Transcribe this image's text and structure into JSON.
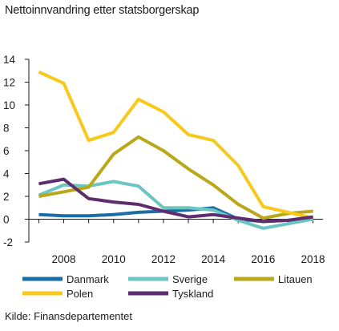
{
  "chart_data": {
    "type": "line",
    "title": "Nettoinnvandring etter statsborgerskap",
    "source": "Kilde: Finansdepartementet",
    "x": [
      2007,
      2008,
      2009,
      2010,
      2011,
      2012,
      2013,
      2014,
      2015,
      2016,
      2017,
      2018
    ],
    "x_tick_labels": [
      "2008",
      "2010",
      "2012",
      "2014",
      "2016",
      "2018"
    ],
    "y_tick_labels": [
      "-2",
      "0",
      "2",
      "4",
      "6",
      "8",
      "10",
      "12",
      "14"
    ],
    "ylim": [
      -2,
      14
    ],
    "xlim": [
      2006.6,
      2018.4
    ],
    "grid": false,
    "legend_position": "bottom",
    "series": [
      {
        "name": "Danmark",
        "color": "#1a6ea8",
        "values": [
          0.4,
          0.3,
          0.3,
          0.4,
          0.6,
          0.7,
          0.8,
          1.0,
          0.0,
          -0.2,
          -0.1,
          0.1
        ]
      },
      {
        "name": "Sverige",
        "color": "#6cc5c0",
        "values": [
          2.1,
          3.0,
          2.9,
          3.3,
          2.9,
          1.0,
          1.0,
          0.8,
          -0.1,
          -0.8,
          -0.4,
          0.0
        ]
      },
      {
        "name": "Litauen",
        "color": "#b8a81a",
        "values": [
          2.0,
          2.4,
          2.8,
          5.7,
          7.2,
          6.0,
          4.4,
          3.0,
          1.3,
          0.1,
          0.5,
          0.7
        ]
      },
      {
        "name": "Polen",
        "color": "#f8c91a",
        "values": [
          12.9,
          11.9,
          6.9,
          7.6,
          10.5,
          9.4,
          7.4,
          6.9,
          4.7,
          1.1,
          0.6,
          0.1
        ]
      },
      {
        "name": "Tyskland",
        "color": "#5e2d6e",
        "values": [
          3.1,
          3.5,
          1.8,
          1.5,
          1.3,
          0.7,
          0.2,
          0.4,
          0.1,
          -0.2,
          -0.1,
          0.2
        ]
      }
    ]
  }
}
